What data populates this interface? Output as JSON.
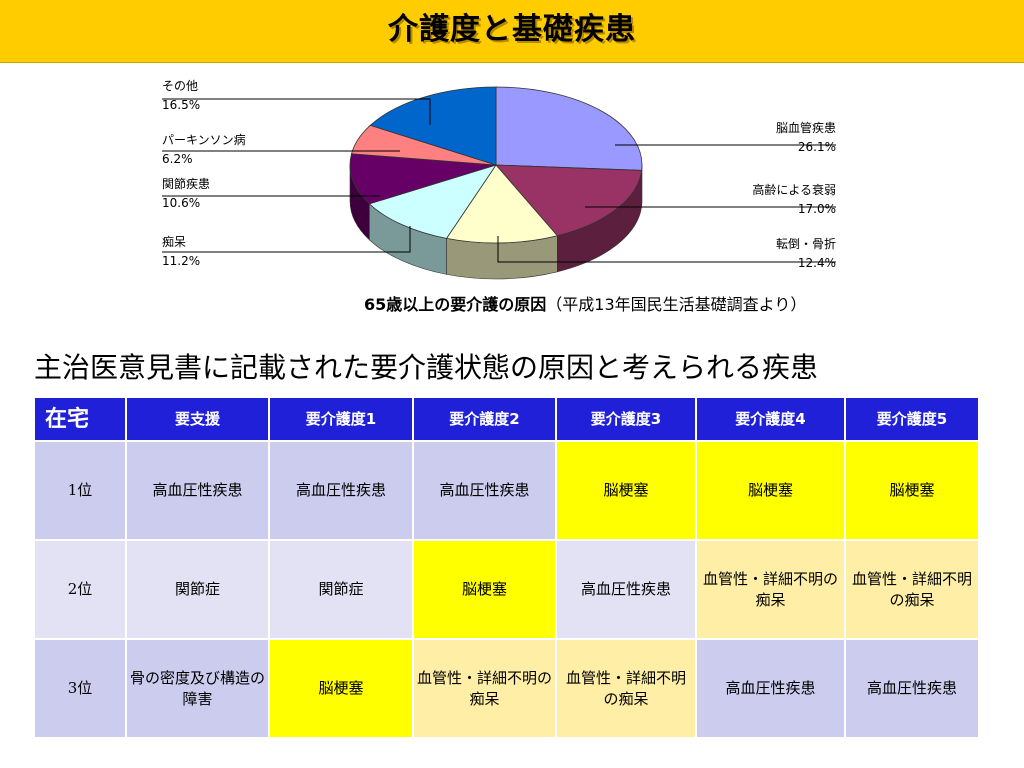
{
  "title": "介護度と基礎疾患",
  "chart_data": {
    "type": "pie",
    "title": "",
    "slices": [
      {
        "label": "脳血管疾患",
        "value": 26.1,
        "display": "26.1%",
        "color": "#9999ff"
      },
      {
        "label": "高齢による衰弱",
        "value": 17.0,
        "display": "17.0%",
        "color": "#993366"
      },
      {
        "label": "転倒・骨折",
        "value": 12.4,
        "display": "12.4%",
        "color": "#ffffcc"
      },
      {
        "label": "痴呆",
        "value": 11.2,
        "display": "11.2%",
        "color": "#ccffff"
      },
      {
        "label": "関節疾患",
        "value": 10.6,
        "display": "10.6%",
        "color": "#660066"
      },
      {
        "label": "パーキンソン病",
        "value": 6.2,
        "display": "6.2%",
        "color": "#ff8080"
      },
      {
        "label": "その他",
        "value": 16.5,
        "display": "16.5%",
        "color": "#0066cc"
      }
    ]
  },
  "caption": {
    "bold": "65歳以上の要介護の原因",
    "rest": "（平成13年国民生活基礎調査より）"
  },
  "subtitle": "主治医意見書に記載された要介護状態の原因と考えられる疾患",
  "table": {
    "headers": [
      "在宅",
      "要支援",
      "要介護度1",
      "要介護度2",
      "要介護度3",
      "要介護度4",
      "要介護度5"
    ],
    "rows": [
      {
        "rank": "1位",
        "cells": [
          "高血圧性疾患",
          "高血圧性疾患",
          "高血圧性疾患",
          "脳梗塞",
          "脳梗塞",
          "脳梗塞"
        ]
      },
      {
        "rank": "2位",
        "cells": [
          "関節症",
          "関節症",
          "脳梗塞",
          "高血圧性疾患",
          "血管性・詳細不明の痴呆",
          "血管性・詳細不明の痴呆"
        ]
      },
      {
        "rank": "3位",
        "cells": [
          "骨の密度及び構造の障害",
          "脳梗塞",
          "血管性・詳細不明の痴呆",
          "血管性・詳細不明の痴呆",
          "高血圧性疾患",
          "高血圧性疾患"
        ]
      }
    ]
  }
}
